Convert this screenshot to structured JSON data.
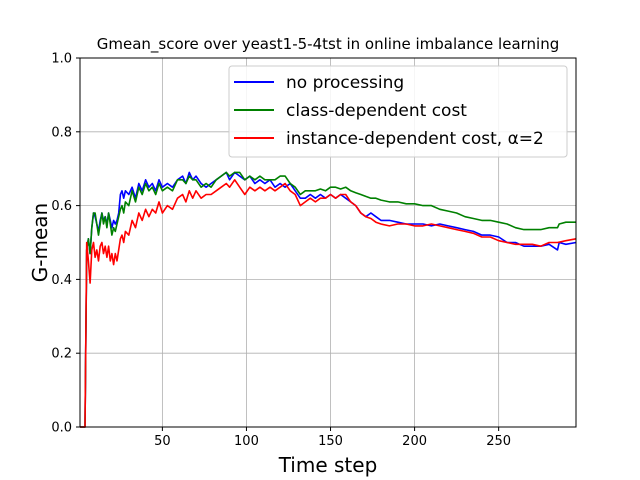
{
  "chart_data": {
    "type": "line",
    "title": "Gmean_score over yeast1-5-4tst in online imbalance learning",
    "xlabel": "Time step",
    "ylabel": "G-mean",
    "xlim": [
      1,
      296
    ],
    "ylim": [
      0,
      1
    ],
    "xticks": [
      50,
      100,
      150,
      200,
      250
    ],
    "yticks": [
      0.0,
      0.2,
      0.4,
      0.6,
      0.8,
      1.0
    ],
    "xtick_labels": [
      "50",
      "100",
      "150",
      "200",
      "250"
    ],
    "ytick_labels": [
      "0.0",
      "0.2",
      "0.4",
      "0.6",
      "0.8",
      "1.0"
    ],
    "grid": true,
    "legend_position": "top-right",
    "series": [
      {
        "name": "no processing",
        "color": "#0000ff",
        "points": [
          [
            1,
            0
          ],
          [
            4,
            0
          ],
          [
            5,
            0.48
          ],
          [
            6,
            0.51
          ],
          [
            7,
            0.47
          ],
          [
            8,
            0.54
          ],
          [
            9,
            0.58
          ],
          [
            10,
            0.57
          ],
          [
            11,
            0.55
          ],
          [
            12,
            0.53
          ],
          [
            13,
            0.56
          ],
          [
            14,
            0.58
          ],
          [
            15,
            0.56
          ],
          [
            16,
            0.57
          ],
          [
            17,
            0.55
          ],
          [
            18,
            0.58
          ],
          [
            19,
            0.56
          ],
          [
            20,
            0.54
          ],
          [
            21,
            0.56
          ],
          [
            22,
            0.55
          ],
          [
            23,
            0.56
          ],
          [
            24,
            0.58
          ],
          [
            25,
            0.63
          ],
          [
            26,
            0.64
          ],
          [
            27,
            0.62
          ],
          [
            28,
            0.64
          ],
          [
            30,
            0.63
          ],
          [
            32,
            0.65
          ],
          [
            34,
            0.62
          ],
          [
            36,
            0.66
          ],
          [
            38,
            0.64
          ],
          [
            40,
            0.67
          ],
          [
            42,
            0.65
          ],
          [
            44,
            0.66
          ],
          [
            46,
            0.64
          ],
          [
            48,
            0.67
          ],
          [
            50,
            0.65
          ],
          [
            53,
            0.66
          ],
          [
            56,
            0.65
          ],
          [
            59,
            0.67
          ],
          [
            62,
            0.68
          ],
          [
            64,
            0.66
          ],
          [
            66,
            0.69
          ],
          [
            68,
            0.67
          ],
          [
            70,
            0.68
          ],
          [
            73,
            0.66
          ],
          [
            76,
            0.65
          ],
          [
            79,
            0.66
          ],
          [
            82,
            0.67
          ],
          [
            85,
            0.68
          ],
          [
            88,
            0.69
          ],
          [
            90,
            0.67
          ],
          [
            93,
            0.69
          ],
          [
            96,
            0.68
          ],
          [
            99,
            0.67
          ],
          [
            102,
            0.68
          ],
          [
            105,
            0.66
          ],
          [
            108,
            0.67
          ],
          [
            111,
            0.66
          ],
          [
            114,
            0.67
          ],
          [
            117,
            0.65
          ],
          [
            120,
            0.66
          ],
          [
            123,
            0.65
          ],
          [
            126,
            0.66
          ],
          [
            129,
            0.64
          ],
          [
            132,
            0.62
          ],
          [
            135,
            0.62
          ],
          [
            138,
            0.63
          ],
          [
            141,
            0.62
          ],
          [
            144,
            0.63
          ],
          [
            147,
            0.62
          ],
          [
            150,
            0.63
          ],
          [
            153,
            0.62
          ],
          [
            156,
            0.63
          ],
          [
            159,
            0.62
          ],
          [
            162,
            0.61
          ],
          [
            165,
            0.6
          ],
          [
            168,
            0.58
          ],
          [
            171,
            0.57
          ],
          [
            174,
            0.58
          ],
          [
            177,
            0.57
          ],
          [
            180,
            0.56
          ],
          [
            185,
            0.56
          ],
          [
            190,
            0.555
          ],
          [
            195,
            0.55
          ],
          [
            200,
            0.55
          ],
          [
            205,
            0.55
          ],
          [
            210,
            0.545
          ],
          [
            215,
            0.55
          ],
          [
            220,
            0.545
          ],
          [
            225,
            0.54
          ],
          [
            230,
            0.535
          ],
          [
            235,
            0.53
          ],
          [
            240,
            0.52
          ],
          [
            245,
            0.52
          ],
          [
            250,
            0.515
          ],
          [
            255,
            0.5
          ],
          [
            260,
            0.5
          ],
          [
            265,
            0.49
          ],
          [
            270,
            0.49
          ],
          [
            275,
            0.49
          ],
          [
            280,
            0.495
          ],
          [
            285,
            0.48
          ],
          [
            286,
            0.5
          ],
          [
            290,
            0.495
          ],
          [
            296,
            0.5
          ]
        ]
      },
      {
        "name": "class-dependent cost",
        "color": "#008000",
        "points": [
          [
            1,
            0
          ],
          [
            4,
            0
          ],
          [
            5,
            0.48
          ],
          [
            6,
            0.51
          ],
          [
            7,
            0.47
          ],
          [
            8,
            0.54
          ],
          [
            9,
            0.58
          ],
          [
            10,
            0.58
          ],
          [
            11,
            0.55
          ],
          [
            12,
            0.52
          ],
          [
            13,
            0.55
          ],
          [
            14,
            0.58
          ],
          [
            15,
            0.55
          ],
          [
            16,
            0.57
          ],
          [
            17,
            0.54
          ],
          [
            18,
            0.58
          ],
          [
            19,
            0.55
          ],
          [
            20,
            0.52
          ],
          [
            21,
            0.54
          ],
          [
            22,
            0.53
          ],
          [
            23,
            0.55
          ],
          [
            24,
            0.57
          ],
          [
            25,
            0.59
          ],
          [
            26,
            0.6
          ],
          [
            27,
            0.58
          ],
          [
            28,
            0.61
          ],
          [
            30,
            0.6
          ],
          [
            32,
            0.64
          ],
          [
            34,
            0.61
          ],
          [
            36,
            0.65
          ],
          [
            38,
            0.63
          ],
          [
            40,
            0.66
          ],
          [
            42,
            0.64
          ],
          [
            44,
            0.65
          ],
          [
            46,
            0.63
          ],
          [
            48,
            0.66
          ],
          [
            50,
            0.64
          ],
          [
            53,
            0.65
          ],
          [
            56,
            0.64
          ],
          [
            59,
            0.67
          ],
          [
            62,
            0.67
          ],
          [
            64,
            0.66
          ],
          [
            66,
            0.68
          ],
          [
            68,
            0.67
          ],
          [
            70,
            0.67
          ],
          [
            73,
            0.65
          ],
          [
            76,
            0.66
          ],
          [
            79,
            0.65
          ],
          [
            82,
            0.67
          ],
          [
            85,
            0.68
          ],
          [
            88,
            0.69
          ],
          [
            90,
            0.68
          ],
          [
            93,
            0.69
          ],
          [
            96,
            0.69
          ],
          [
            99,
            0.67
          ],
          [
            102,
            0.68
          ],
          [
            105,
            0.67
          ],
          [
            108,
            0.68
          ],
          [
            111,
            0.67
          ],
          [
            114,
            0.67
          ],
          [
            117,
            0.67
          ],
          [
            120,
            0.68
          ],
          [
            123,
            0.68
          ],
          [
            126,
            0.66
          ],
          [
            129,
            0.65
          ],
          [
            132,
            0.63
          ],
          [
            135,
            0.64
          ],
          [
            138,
            0.64
          ],
          [
            141,
            0.64
          ],
          [
            144,
            0.645
          ],
          [
            147,
            0.64
          ],
          [
            150,
            0.65
          ],
          [
            153,
            0.65
          ],
          [
            156,
            0.645
          ],
          [
            159,
            0.65
          ],
          [
            162,
            0.64
          ],
          [
            165,
            0.635
          ],
          [
            168,
            0.63
          ],
          [
            171,
            0.625
          ],
          [
            174,
            0.62
          ],
          [
            177,
            0.62
          ],
          [
            180,
            0.615
          ],
          [
            185,
            0.61
          ],
          [
            190,
            0.61
          ],
          [
            195,
            0.605
          ],
          [
            200,
            0.605
          ],
          [
            205,
            0.6
          ],
          [
            210,
            0.6
          ],
          [
            215,
            0.59
          ],
          [
            220,
            0.585
          ],
          [
            225,
            0.58
          ],
          [
            230,
            0.57
          ],
          [
            235,
            0.565
          ],
          [
            240,
            0.56
          ],
          [
            245,
            0.56
          ],
          [
            250,
            0.555
          ],
          [
            255,
            0.55
          ],
          [
            260,
            0.54
          ],
          [
            265,
            0.535
          ],
          [
            270,
            0.535
          ],
          [
            275,
            0.535
          ],
          [
            280,
            0.54
          ],
          [
            285,
            0.54
          ],
          [
            286,
            0.55
          ],
          [
            290,
            0.555
          ],
          [
            296,
            0.555
          ]
        ]
      },
      {
        "name": "instance-dependent cost, α=2",
        "color": "#ff0000",
        "points": [
          [
            1,
            0
          ],
          [
            4,
            0
          ],
          [
            5,
            0.5
          ],
          [
            6,
            0.45
          ],
          [
            7,
            0.39
          ],
          [
            8,
            0.48
          ],
          [
            9,
            0.5
          ],
          [
            10,
            0.46
          ],
          [
            11,
            0.48
          ],
          [
            12,
            0.45
          ],
          [
            13,
            0.49
          ],
          [
            14,
            0.5
          ],
          [
            15,
            0.47
          ],
          [
            16,
            0.49
          ],
          [
            17,
            0.46
          ],
          [
            18,
            0.49
          ],
          [
            19,
            0.45
          ],
          [
            20,
            0.47
          ],
          [
            21,
            0.44
          ],
          [
            22,
            0.47
          ],
          [
            23,
            0.45
          ],
          [
            24,
            0.48
          ],
          [
            25,
            0.51
          ],
          [
            26,
            0.52
          ],
          [
            27,
            0.5
          ],
          [
            28,
            0.53
          ],
          [
            30,
            0.52
          ],
          [
            32,
            0.56
          ],
          [
            34,
            0.54
          ],
          [
            36,
            0.58
          ],
          [
            38,
            0.56
          ],
          [
            40,
            0.59
          ],
          [
            42,
            0.57
          ],
          [
            44,
            0.59
          ],
          [
            46,
            0.58
          ],
          [
            48,
            0.61
          ],
          [
            50,
            0.58
          ],
          [
            53,
            0.6
          ],
          [
            56,
            0.59
          ],
          [
            59,
            0.62
          ],
          [
            62,
            0.63
          ],
          [
            64,
            0.61
          ],
          [
            66,
            0.64
          ],
          [
            68,
            0.62
          ],
          [
            70,
            0.64
          ],
          [
            73,
            0.62
          ],
          [
            76,
            0.63
          ],
          [
            79,
            0.63
          ],
          [
            82,
            0.64
          ],
          [
            85,
            0.65
          ],
          [
            88,
            0.66
          ],
          [
            90,
            0.65
          ],
          [
            93,
            0.67
          ],
          [
            96,
            0.65
          ],
          [
            99,
            0.63
          ],
          [
            102,
            0.65
          ],
          [
            105,
            0.64
          ],
          [
            108,
            0.65
          ],
          [
            111,
            0.64
          ],
          [
            114,
            0.65
          ],
          [
            117,
            0.64
          ],
          [
            120,
            0.65
          ],
          [
            123,
            0.66
          ],
          [
            126,
            0.64
          ],
          [
            129,
            0.63
          ],
          [
            132,
            0.6
          ],
          [
            135,
            0.61
          ],
          [
            138,
            0.62
          ],
          [
            141,
            0.61
          ],
          [
            144,
            0.62
          ],
          [
            147,
            0.62
          ],
          [
            150,
            0.63
          ],
          [
            153,
            0.62
          ],
          [
            156,
            0.63
          ],
          [
            159,
            0.63
          ],
          [
            162,
            0.61
          ],
          [
            165,
            0.6
          ],
          [
            168,
            0.58
          ],
          [
            171,
            0.57
          ],
          [
            174,
            0.565
          ],
          [
            177,
            0.555
          ],
          [
            180,
            0.55
          ],
          [
            185,
            0.545
          ],
          [
            190,
            0.55
          ],
          [
            195,
            0.55
          ],
          [
            200,
            0.545
          ],
          [
            205,
            0.545
          ],
          [
            210,
            0.55
          ],
          [
            215,
            0.545
          ],
          [
            220,
            0.54
          ],
          [
            225,
            0.535
          ],
          [
            230,
            0.53
          ],
          [
            235,
            0.525
          ],
          [
            240,
            0.515
          ],
          [
            245,
            0.515
          ],
          [
            250,
            0.505
          ],
          [
            255,
            0.5
          ],
          [
            260,
            0.495
          ],
          [
            265,
            0.495
          ],
          [
            270,
            0.495
          ],
          [
            275,
            0.49
          ],
          [
            280,
            0.5
          ],
          [
            285,
            0.5
          ],
          [
            290,
            0.505
          ],
          [
            296,
            0.51
          ]
        ]
      }
    ]
  }
}
